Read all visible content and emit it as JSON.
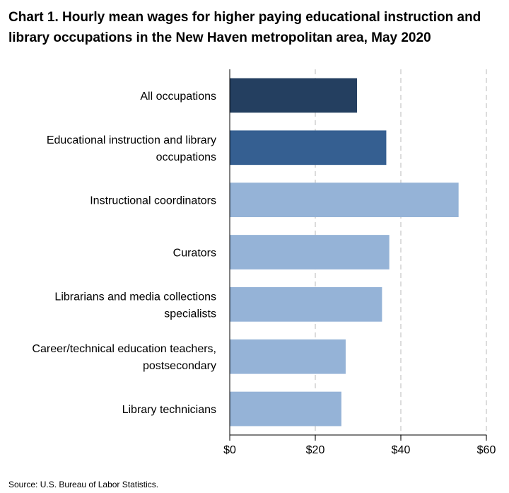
{
  "chart_data": {
    "type": "bar",
    "orientation": "horizontal",
    "title": "Chart 1. Hourly mean wages for higher paying educational instruction and library occupations in the New Haven metropolitan area, May 2020",
    "categories": [
      "All occupations",
      "Educational instruction and library occupations",
      "Instructional coordinators",
      "Curators",
      "Librarians and media collections specialists",
      "Career/technical education teachers, postsecondary",
      "Library technicians"
    ],
    "values": [
      29.75,
      36.6,
      53.5,
      37.3,
      35.6,
      27.1,
      26.1
    ],
    "colors": [
      "#243f60",
      "#355f91",
      "#95b3d7",
      "#95b3d7",
      "#95b3d7",
      "#95b3d7",
      "#95b3d7"
    ],
    "xlim": [
      0,
      60
    ],
    "xticks": [
      0,
      20,
      40,
      60
    ],
    "xtick_labels": [
      "$0",
      "$20",
      "$40",
      "$60"
    ],
    "grid": "vertical dashed",
    "xlabel": "",
    "ylabel": ""
  },
  "source": "Source: U.S. Bureau of Labor Statistics."
}
